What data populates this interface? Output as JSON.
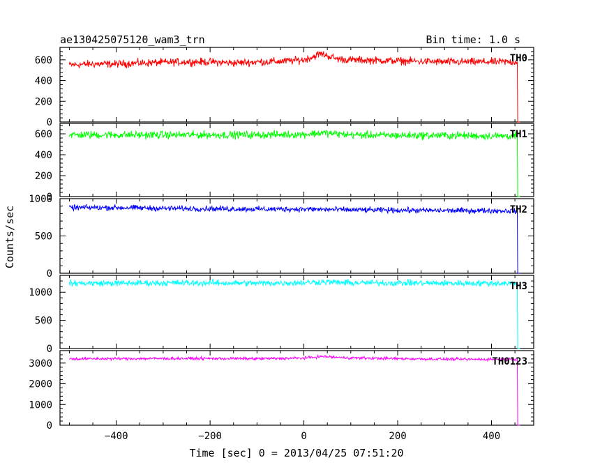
{
  "header": {
    "title": "ae130425075120_wam3_trn",
    "bin_time": "Bin time: 1.0 s"
  },
  "chart_data": {
    "type": "line",
    "title": "ae130425075120_wam3_trn",
    "xlabel": "Time [sec] 0 = 2013/04/25 07:51:20",
    "ylabel": "Counts/sec",
    "xlim": [
      -520,
      490
    ],
    "x_ticks": [
      -400,
      -200,
      0,
      200,
      400
    ],
    "data_x_range": [
      -500,
      454
    ],
    "drop_to_zero_at": 456,
    "grid": false,
    "panels": [
      {
        "name": "TH0",
        "color": "#ff0000",
        "ylim": [
          0,
          720
        ],
        "y_ticks": [
          0,
          200,
          400,
          600
        ],
        "points": [
          [
            -500,
            550
          ],
          [
            -450,
            560
          ],
          [
            -400,
            560
          ],
          [
            -350,
            570
          ],
          [
            -300,
            575
          ],
          [
            -250,
            580
          ],
          [
            -200,
            580
          ],
          [
            -150,
            570
          ],
          [
            -100,
            580
          ],
          [
            -50,
            585
          ],
          [
            0,
            600
          ],
          [
            20,
            630
          ],
          [
            35,
            660
          ],
          [
            50,
            640
          ],
          [
            70,
            610
          ],
          [
            100,
            600
          ],
          [
            150,
            595
          ],
          [
            200,
            590
          ],
          [
            250,
            585
          ],
          [
            300,
            580
          ],
          [
            350,
            580
          ],
          [
            400,
            580
          ],
          [
            454,
            580
          ]
        ],
        "noise_amplitude": 30
      },
      {
        "name": "TH1",
        "color": "#00ff00",
        "ylim": [
          0,
          700
        ],
        "y_ticks": [
          0,
          200,
          400,
          600
        ],
        "points": [
          [
            -500,
            590
          ],
          [
            -400,
            590
          ],
          [
            -300,
            590
          ],
          [
            -200,
            590
          ],
          [
            -100,
            590
          ],
          [
            0,
            595
          ],
          [
            40,
            610
          ],
          [
            100,
            590
          ],
          [
            200,
            585
          ],
          [
            300,
            585
          ],
          [
            400,
            580
          ],
          [
            454,
            580
          ]
        ],
        "noise_amplitude": 30
      },
      {
        "name": "TH2",
        "color": "#0000ff",
        "ylim": [
          0,
          1000
        ],
        "y_ticks": [
          0,
          500,
          1000
        ],
        "points": [
          [
            -500,
            880
          ],
          [
            -400,
            880
          ],
          [
            -300,
            870
          ],
          [
            -200,
            865
          ],
          [
            -100,
            860
          ],
          [
            0,
            860
          ],
          [
            100,
            850
          ],
          [
            200,
            845
          ],
          [
            300,
            840
          ],
          [
            400,
            840
          ],
          [
            454,
            835
          ]
        ],
        "noise_amplitude": 30
      },
      {
        "name": "TH3",
        "color": "#00ffff",
        "ylim": [
          0,
          1300
        ],
        "y_ticks": [
          0,
          500,
          1000
        ],
        "points": [
          [
            -500,
            1160
          ],
          [
            -400,
            1160
          ],
          [
            -300,
            1165
          ],
          [
            -200,
            1165
          ],
          [
            -100,
            1160
          ],
          [
            0,
            1170
          ],
          [
            40,
            1185
          ],
          [
            100,
            1165
          ],
          [
            200,
            1165
          ],
          [
            300,
            1160
          ],
          [
            400,
            1160
          ],
          [
            454,
            1160
          ]
        ],
        "noise_amplitude": 45
      },
      {
        "name": "TH0123",
        "color": "#ff00ff",
        "ylim": [
          0,
          3600
        ],
        "y_ticks": [
          0,
          1000,
          2000,
          3000
        ],
        "points": [
          [
            -500,
            3200
          ],
          [
            -400,
            3210
          ],
          [
            -300,
            3220
          ],
          [
            -200,
            3220
          ],
          [
            -100,
            3210
          ],
          [
            0,
            3240
          ],
          [
            40,
            3320
          ],
          [
            80,
            3260
          ],
          [
            150,
            3230
          ],
          [
            250,
            3200
          ],
          [
            350,
            3180
          ],
          [
            454,
            3180
          ]
        ],
        "noise_amplitude": 55
      }
    ]
  }
}
